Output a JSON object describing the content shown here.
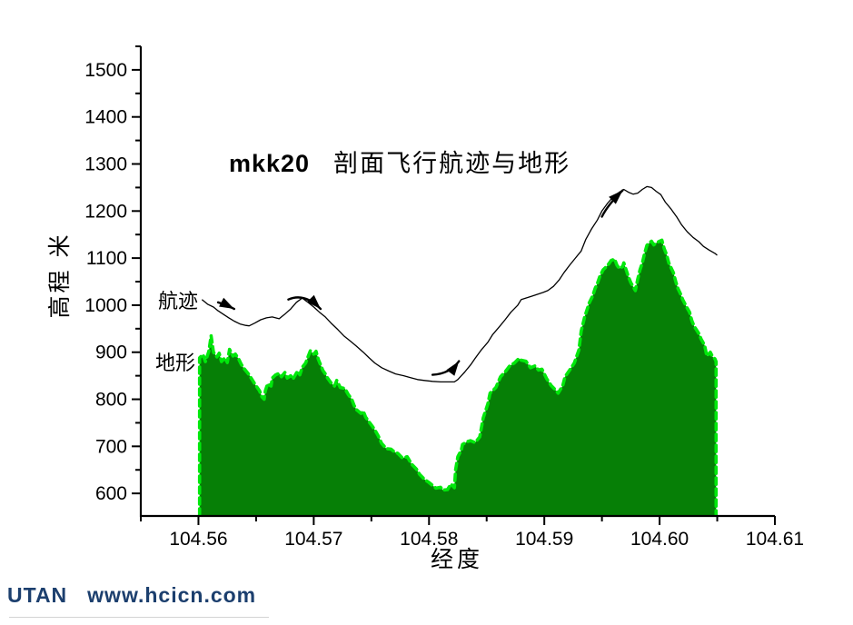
{
  "title": {
    "code": "mkk20",
    "text": "剖面飞行航迹与地形"
  },
  "labels": {
    "y_axis": "高程 米",
    "x_axis": "经度",
    "trajectory": "航迹",
    "terrain": "地形"
  },
  "footer": {
    "brand": "UTAN",
    "url": "www.hcicn.com",
    "color": "#1c3f6e"
  },
  "colors": {
    "terrain_fill": "#067f06",
    "terrain_edge": "#00e80b",
    "trajectory": "#000000",
    "axis": "#000000"
  },
  "chart_data": {
    "type": "area",
    "title": "mkk20 剖面飞行航迹与地形",
    "xlabel": "经度",
    "ylabel": "高程 米",
    "xlim": [
      104.555,
      104.61
    ],
    "ylim": [
      552,
      1550
    ],
    "grid": false,
    "legend_position": "none",
    "x_ticks": [
      {
        "v": 104.56,
        "label": "104.56"
      },
      {
        "v": 104.57,
        "label": "104.57"
      },
      {
        "v": 104.58,
        "label": "104.58"
      },
      {
        "v": 104.59,
        "label": "104.59"
      },
      {
        "v": 104.6,
        "label": "104.60"
      },
      {
        "v": 104.61,
        "label": "104.61"
      }
    ],
    "x_minor_ticks": [
      104.555,
      104.565,
      104.575,
      104.585,
      104.595,
      104.605
    ],
    "y_ticks": [
      600,
      700,
      800,
      900,
      1000,
      1100,
      1200,
      1300,
      1400,
      1500
    ],
    "y_minor_ticks": [
      650,
      750,
      850,
      950,
      1050,
      1150,
      1250,
      1350,
      1450,
      1550
    ],
    "series": [
      {
        "name": "地形",
        "type": "area",
        "points": [
          [
            104.5601,
            888
          ],
          [
            104.5604,
            895
          ],
          [
            104.5606,
            880
          ],
          [
            104.5609,
            902
          ],
          [
            104.5611,
            935
          ],
          [
            104.5613,
            900
          ],
          [
            104.5616,
            890
          ],
          [
            104.5618,
            898
          ],
          [
            104.562,
            880
          ],
          [
            104.5623,
            888
          ],
          [
            104.5625,
            878
          ],
          [
            104.5627,
            906
          ],
          [
            104.563,
            892
          ],
          [
            104.5632,
            896
          ],
          [
            104.5635,
            885
          ],
          [
            104.5637,
            875
          ],
          [
            104.5639,
            867
          ],
          [
            104.5642,
            858
          ],
          [
            104.5644,
            852
          ],
          [
            104.5647,
            840
          ],
          [
            104.5649,
            832
          ],
          [
            104.5653,
            818
          ],
          [
            104.5655,
            805
          ],
          [
            104.5657,
            800
          ],
          [
            104.5658,
            818
          ],
          [
            104.566,
            833
          ],
          [
            104.5663,
            828
          ],
          [
            104.5664,
            845
          ],
          [
            104.5667,
            852
          ],
          [
            104.567,
            855
          ],
          [
            104.5672,
            848
          ],
          [
            104.5675,
            857
          ],
          [
            104.5677,
            845
          ],
          [
            104.568,
            850
          ],
          [
            104.5682,
            843
          ],
          [
            104.5686,
            860
          ],
          [
            104.5688,
            852
          ],
          [
            104.569,
            868
          ],
          [
            104.5693,
            877
          ],
          [
            104.5695,
            890
          ],
          [
            104.5697,
            903
          ],
          [
            104.57,
            896
          ],
          [
            104.5702,
            902
          ],
          [
            104.5704,
            885
          ],
          [
            104.5708,
            861
          ],
          [
            104.571,
            854
          ],
          [
            104.5712,
            845
          ],
          [
            104.5715,
            835
          ],
          [
            104.5718,
            828
          ],
          [
            104.572,
            840
          ],
          [
            104.5723,
            825
          ],
          [
            104.5727,
            823
          ],
          [
            104.573,
            810
          ],
          [
            104.5733,
            800
          ],
          [
            104.5735,
            787
          ],
          [
            104.5737,
            778
          ],
          [
            104.5741,
            770
          ],
          [
            104.5743,
            775
          ],
          [
            104.5745,
            762
          ],
          [
            104.5748,
            752
          ],
          [
            104.5751,
            742
          ],
          [
            104.5753,
            735
          ],
          [
            104.5756,
            722
          ],
          [
            104.5759,
            706
          ],
          [
            104.5763,
            695
          ],
          [
            104.5767,
            694
          ],
          [
            104.577,
            688
          ],
          [
            104.5773,
            685
          ],
          [
            104.5777,
            675
          ],
          [
            104.5781,
            678
          ],
          [
            104.5785,
            662
          ],
          [
            104.5789,
            652
          ],
          [
            104.5792,
            640
          ],
          [
            104.5796,
            630
          ],
          [
            104.58,
            623
          ],
          [
            104.5803,
            617
          ],
          [
            104.5806,
            611
          ],
          [
            104.581,
            613
          ],
          [
            104.5812,
            607
          ],
          [
            104.5816,
            608
          ],
          [
            104.5819,
            620
          ],
          [
            104.5822,
            612
          ],
          [
            104.5823,
            650
          ],
          [
            104.5825,
            678
          ],
          [
            104.5828,
            692
          ],
          [
            104.5829,
            704
          ],
          [
            104.5833,
            710
          ],
          [
            104.5836,
            712
          ],
          [
            104.584,
            708
          ],
          [
            104.5844,
            720
          ],
          [
            104.5847,
            760
          ],
          [
            104.5851,
            790
          ],
          [
            104.5853,
            813
          ],
          [
            104.5858,
            825
          ],
          [
            104.5862,
            848
          ],
          [
            104.5866,
            858
          ],
          [
            104.587,
            871
          ],
          [
            104.5874,
            877
          ],
          [
            104.5878,
            887
          ],
          [
            104.588,
            883
          ],
          [
            104.5884,
            881
          ],
          [
            104.5888,
            867
          ],
          [
            104.5892,
            871
          ],
          [
            104.5895,
            862
          ],
          [
            104.5898,
            864
          ],
          [
            104.5902,
            844
          ],
          [
            104.5906,
            829
          ],
          [
            104.591,
            819
          ],
          [
            104.5912,
            813
          ],
          [
            104.5916,
            829
          ],
          [
            104.5918,
            848
          ],
          [
            104.5922,
            862
          ],
          [
            104.5926,
            877
          ],
          [
            104.593,
            905
          ],
          [
            104.5932,
            945
          ],
          [
            104.5935,
            975
          ],
          [
            104.5939,
            1005
          ],
          [
            104.5942,
            1020
          ],
          [
            104.5944,
            1035
          ],
          [
            104.5946,
            1046
          ],
          [
            104.5948,
            1060
          ],
          [
            104.5951,
            1075
          ],
          [
            104.5954,
            1082
          ],
          [
            104.5956,
            1088
          ],
          [
            104.5958,
            1095
          ],
          [
            104.5961,
            1098
          ],
          [
            104.5963,
            1085
          ],
          [
            104.5965,
            1078
          ],
          [
            104.5968,
            1082
          ],
          [
            104.5969,
            1090
          ],
          [
            104.5971,
            1075
          ],
          [
            104.5973,
            1060
          ],
          [
            104.5975,
            1048
          ],
          [
            104.5979,
            1031
          ],
          [
            104.5981,
            1055
          ],
          [
            104.5983,
            1075
          ],
          [
            104.5985,
            1090
          ],
          [
            104.5987,
            1110
          ],
          [
            104.5989,
            1127
          ],
          [
            104.5991,
            1132
          ],
          [
            104.5993,
            1136
          ],
          [
            104.5995,
            1128
          ],
          [
            104.5997,
            1132
          ],
          [
            104.6,
            1136
          ],
          [
            104.6002,
            1138
          ],
          [
            104.6004,
            1120
          ],
          [
            104.6006,
            1108
          ],
          [
            104.6008,
            1090
          ],
          [
            104.6012,
            1069
          ],
          [
            104.6014,
            1050
          ],
          [
            104.6016,
            1035
          ],
          [
            104.6018,
            1025
          ],
          [
            104.602,
            1012
          ],
          [
            104.6023,
            998
          ],
          [
            104.6026,
            985
          ],
          [
            104.6028,
            967
          ],
          [
            104.603,
            955
          ],
          [
            104.6034,
            940
          ],
          [
            104.6036,
            928
          ],
          [
            104.6039,
            915
          ],
          [
            104.6041,
            892
          ],
          [
            104.6044,
            900
          ],
          [
            104.6046,
            890
          ],
          [
            104.6048,
            886
          ],
          [
            104.6049,
            880
          ]
        ]
      },
      {
        "name": "航迹",
        "type": "line",
        "points": [
          [
            104.5603,
            1012
          ],
          [
            104.5608,
            1002
          ],
          [
            104.5613,
            996
          ],
          [
            104.5617,
            988
          ],
          [
            104.5622,
            980
          ],
          [
            104.5627,
            972
          ],
          [
            104.5631,
            966
          ],
          [
            104.5636,
            960
          ],
          [
            104.5641,
            957
          ],
          [
            104.5644,
            956
          ],
          [
            104.5649,
            962
          ],
          [
            104.5654,
            969
          ],
          [
            104.5659,
            973
          ],
          [
            104.5664,
            975
          ],
          [
            104.567,
            971
          ],
          [
            104.5675,
            981
          ],
          [
            104.568,
            992
          ],
          [
            104.5685,
            1006
          ],
          [
            104.569,
            1015
          ],
          [
            104.5694,
            1008
          ],
          [
            104.57,
            996
          ],
          [
            104.5705,
            985
          ],
          [
            104.571,
            975
          ],
          [
            104.5715,
            962
          ],
          [
            104.5721,
            948
          ],
          [
            104.5726,
            935
          ],
          [
            104.5732,
            923
          ],
          [
            104.5737,
            913
          ],
          [
            104.5743,
            900
          ],
          [
            104.5748,
            888
          ],
          [
            104.5753,
            877
          ],
          [
            104.5759,
            867
          ],
          [
            104.5765,
            860
          ],
          [
            104.5771,
            854
          ],
          [
            104.5778,
            850
          ],
          [
            104.5784,
            846
          ],
          [
            104.579,
            842
          ],
          [
            104.5796,
            840
          ],
          [
            104.5803,
            838
          ],
          [
            104.581,
            837
          ],
          [
            104.5816,
            837
          ],
          [
            104.5822,
            837
          ],
          [
            104.5825,
            842
          ],
          [
            104.5831,
            858
          ],
          [
            104.5836,
            873
          ],
          [
            104.584,
            887
          ],
          [
            104.5845,
            904
          ],
          [
            104.5851,
            921
          ],
          [
            104.5855,
            937
          ],
          [
            104.5861,
            954
          ],
          [
            104.5866,
            969
          ],
          [
            104.5871,
            985
          ],
          [
            104.5877,
            1000
          ],
          [
            104.588,
            1012
          ],
          [
            104.5884,
            1015
          ],
          [
            104.5889,
            1019
          ],
          [
            104.5894,
            1023
          ],
          [
            104.5899,
            1027
          ],
          [
            104.5903,
            1031
          ],
          [
            104.5908,
            1040
          ],
          [
            104.5913,
            1054
          ],
          [
            104.5917,
            1069
          ],
          [
            104.5922,
            1085
          ],
          [
            104.5927,
            1100
          ],
          [
            104.5932,
            1115
          ],
          [
            104.5936,
            1140
          ],
          [
            104.5941,
            1162
          ],
          [
            104.5946,
            1181
          ],
          [
            104.595,
            1200
          ],
          [
            104.5955,
            1217
          ],
          [
            104.596,
            1231
          ],
          [
            104.5965,
            1240
          ],
          [
            104.5969,
            1246
          ],
          [
            104.5973,
            1240
          ],
          [
            104.5977,
            1236
          ],
          [
            104.5981,
            1238
          ],
          [
            104.5985,
            1246
          ],
          [
            104.5989,
            1252
          ],
          [
            104.5993,
            1250
          ],
          [
            104.5997,
            1242
          ],
          [
            104.6001,
            1235
          ],
          [
            104.6005,
            1219
          ],
          [
            104.601,
            1204
          ],
          [
            104.6015,
            1187
          ],
          [
            104.6019,
            1171
          ],
          [
            104.6024,
            1156
          ],
          [
            104.6029,
            1144
          ],
          [
            104.6034,
            1135
          ],
          [
            104.6038,
            1125
          ],
          [
            104.6043,
            1117
          ],
          [
            104.6048,
            1110
          ],
          [
            104.605,
            1106
          ]
        ]
      }
    ],
    "direction_arrows": [
      {
        "points": [
          [
            104.5617,
            1006
          ],
          [
            104.5624,
            1001
          ],
          [
            104.5631,
            992
          ]
        ]
      },
      {
        "points": [
          [
            104.5678,
            1012
          ],
          [
            104.5692,
            1027
          ],
          [
            104.5706,
            992
          ]
        ]
      },
      {
        "points": [
          [
            104.5803,
            852
          ],
          [
            104.5818,
            854
          ],
          [
            104.5826,
            881
          ]
        ]
      },
      {
        "points": [
          [
            104.595,
            1188
          ],
          [
            104.5955,
            1213
          ],
          [
            104.5968,
            1244
          ]
        ]
      }
    ]
  }
}
